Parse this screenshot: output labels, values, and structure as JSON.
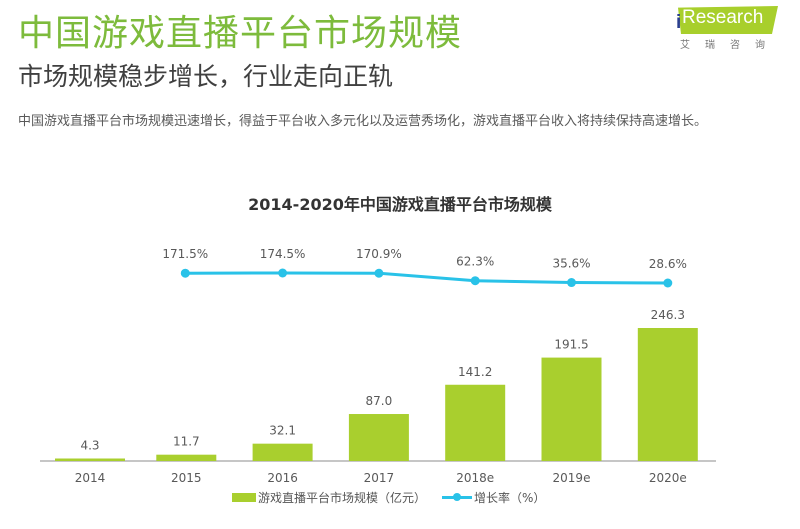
{
  "header": {
    "title": "中国游戏直播平台市场规模",
    "subtitle": "市场规模稳步增长，行业走向正轨",
    "description": "中国游戏直播平台市场规模迅速增长，得益于平台收入多元化以及运营秀场化，游戏直播平台收入将持续保持高速增长。"
  },
  "logo": {
    "text": "Research",
    "i": "i",
    "cn": "艾瑞咨询",
    "color": "#a8cf2c"
  },
  "chart_data": {
    "type": "bar",
    "title": "2014-2020年中国游戏直播平台市场规模",
    "categories": [
      "2014",
      "2015",
      "2016",
      "2017",
      "2018e",
      "2019e",
      "2020e"
    ],
    "series": [
      {
        "name": "游戏直播平台市场规模（亿元）",
        "type": "bar",
        "color": "#a9cf2e",
        "values": [
          4.3,
          11.7,
          32.1,
          87.0,
          141.2,
          191.5,
          246.3
        ],
        "labels": [
          "4.3",
          "11.7",
          "32.1",
          "87.0",
          "141.2",
          "191.5",
          "246.3"
        ]
      },
      {
        "name": "增长率（%）",
        "type": "line",
        "color": "#29c2e8",
        "x": [
          "2015",
          "2016",
          "2017",
          "2018e",
          "2019e",
          "2020e"
        ],
        "values": [
          171.5,
          174.5,
          170.9,
          62.3,
          35.6,
          28.6
        ],
        "labels": [
          "171.5%",
          "174.5%",
          "170.9%",
          "62.3%",
          "35.6%",
          "28.6%"
        ]
      }
    ],
    "xlabel": "",
    "ylabel": "",
    "ylim": [
      0,
      250
    ],
    "grid": false,
    "legend": "bottom"
  }
}
